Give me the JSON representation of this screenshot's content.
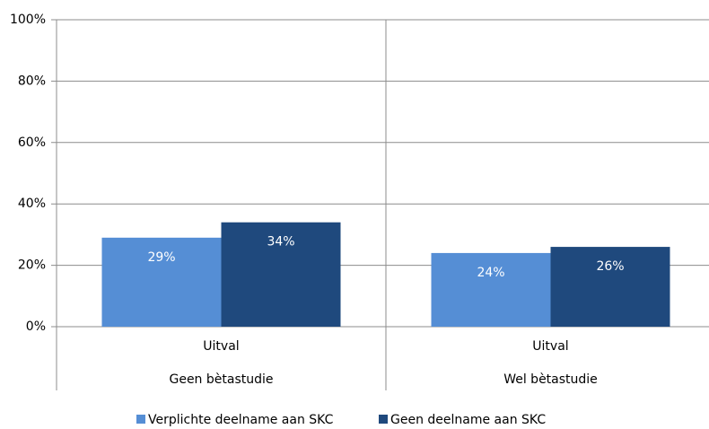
{
  "chart_data": {
    "type": "bar",
    "categories": [
      "Uitval",
      "Uitval"
    ],
    "groups": [
      "Geen bètastudie",
      "Wel bètastudie"
    ],
    "series": [
      {
        "name": "Verplichte deelname aan SKC",
        "color": "#558ed5",
        "values": [
          29,
          24
        ],
        "value_labels": [
          "29%",
          "24%"
        ]
      },
      {
        "name": "Geen deelname aan SKC",
        "color": "#1f497d",
        "values": [
          34,
          26
        ],
        "value_labels": [
          "34%",
          "26%"
        ]
      }
    ],
    "ylim": [
      0,
      100
    ],
    "yticks": [
      {
        "value": 0,
        "label": "0%"
      },
      {
        "value": 20,
        "label": "20%"
      },
      {
        "value": 40,
        "label": "40%"
      },
      {
        "value": 60,
        "label": "60%"
      },
      {
        "value": 80,
        "label": "80%"
      },
      {
        "value": 100,
        "label": "100%"
      }
    ],
    "grid": true,
    "legend": "bottom"
  }
}
